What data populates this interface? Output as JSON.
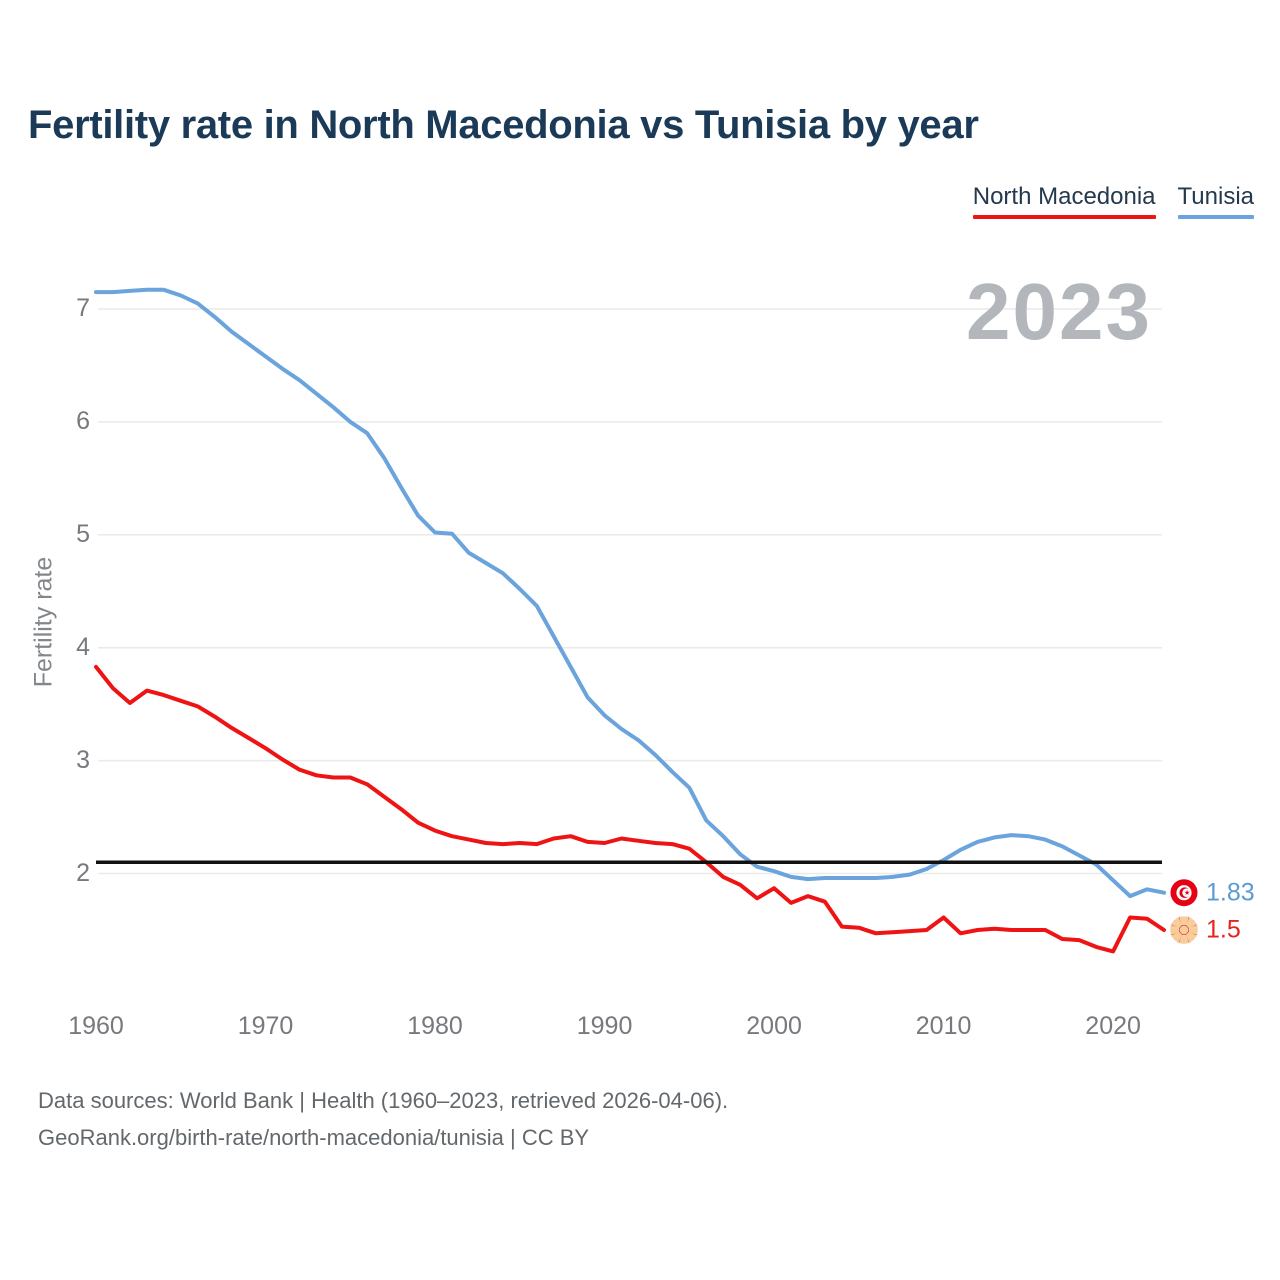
{
  "header": {
    "title": "Fertility rate in North Macedonia vs Tunisia by year"
  },
  "legend": {
    "items": [
      {
        "label": "North Macedonia",
        "color": "#ee1414"
      },
      {
        "label": "Tunisia",
        "color": "#6ba3dc"
      }
    ]
  },
  "watermark": {
    "text": "2023"
  },
  "chart_data": {
    "type": "line",
    "title": "Fertility rate in North Macedonia vs Tunisia by year",
    "xlabel": "",
    "ylabel": "Fertility rate",
    "grid": true,
    "legend_position": "top-right",
    "ylim": [
      1.2,
      7.35
    ],
    "y_ticks": [
      2,
      3,
      4,
      5,
      6,
      7
    ],
    "x_ticks": [
      1960,
      1970,
      1980,
      1990,
      2000,
      2010,
      2020
    ],
    "reference_line": {
      "value": 2.1,
      "color": "#111111"
    },
    "x": [
      1960,
      1961,
      1962,
      1963,
      1964,
      1965,
      1966,
      1967,
      1968,
      1969,
      1970,
      1971,
      1972,
      1973,
      1974,
      1975,
      1976,
      1977,
      1978,
      1979,
      1980,
      1981,
      1982,
      1983,
      1984,
      1985,
      1986,
      1987,
      1988,
      1989,
      1990,
      1991,
      1992,
      1993,
      1994,
      1995,
      1996,
      1997,
      1998,
      1999,
      2000,
      2001,
      2002,
      2003,
      2004,
      2005,
      2006,
      2007,
      2008,
      2009,
      2010,
      2011,
      2012,
      2013,
      2014,
      2015,
      2016,
      2017,
      2018,
      2019,
      2020,
      2021,
      2022,
      2023
    ],
    "series": [
      {
        "name": "North Macedonia",
        "color": "#ee1414",
        "end_label": "1.5",
        "end_label_color": "#e8221d",
        "flag": "north-macedonia",
        "values": [
          3.83,
          3.64,
          3.51,
          3.62,
          3.58,
          3.53,
          3.48,
          3.39,
          3.29,
          3.2,
          3.11,
          3.01,
          2.92,
          2.87,
          2.85,
          2.85,
          2.79,
          2.68,
          2.57,
          2.45,
          2.38,
          2.33,
          2.3,
          2.27,
          2.26,
          2.27,
          2.26,
          2.31,
          2.33,
          2.28,
          2.27,
          2.31,
          2.29,
          2.27,
          2.26,
          2.22,
          2.1,
          1.97,
          1.9,
          1.78,
          1.87,
          1.74,
          1.8,
          1.75,
          1.53,
          1.52,
          1.47,
          1.48,
          1.49,
          1.5,
          1.61,
          1.47,
          1.5,
          1.51,
          1.5,
          1.5,
          1.5,
          1.42,
          1.41,
          1.35,
          1.31,
          1.61,
          1.6,
          1.5
        ]
      },
      {
        "name": "Tunisia",
        "color": "#6ba3dc",
        "end_label": "1.83",
        "end_label_color": "#5b9bd5",
        "flag": "tunisia",
        "values": [
          7.15,
          7.15,
          7.16,
          7.17,
          7.17,
          7.12,
          7.05,
          6.93,
          6.8,
          6.69,
          6.58,
          6.47,
          6.37,
          6.25,
          6.13,
          6.0,
          5.9,
          5.68,
          5.42,
          5.17,
          5.02,
          5.01,
          4.84,
          4.75,
          4.66,
          4.52,
          4.37,
          4.1,
          3.83,
          3.56,
          3.4,
          3.28,
          3.18,
          3.05,
          2.9,
          2.76,
          2.47,
          2.33,
          2.17,
          2.06,
          2.02,
          1.97,
          1.95,
          1.96,
          1.96,
          1.96,
          1.96,
          1.97,
          1.99,
          2.04,
          2.12,
          2.21,
          2.28,
          2.32,
          2.34,
          2.33,
          2.3,
          2.24,
          2.16,
          2.08,
          1.94,
          1.8,
          1.86,
          1.83
        ]
      }
    ]
  },
  "footer": {
    "line1": "Data sources: World Bank | Health (1960–2023, retrieved 2026-04-06).",
    "line2": "GeoRank.org/birth-rate/north-macedonia/tunisia | CC BY"
  }
}
